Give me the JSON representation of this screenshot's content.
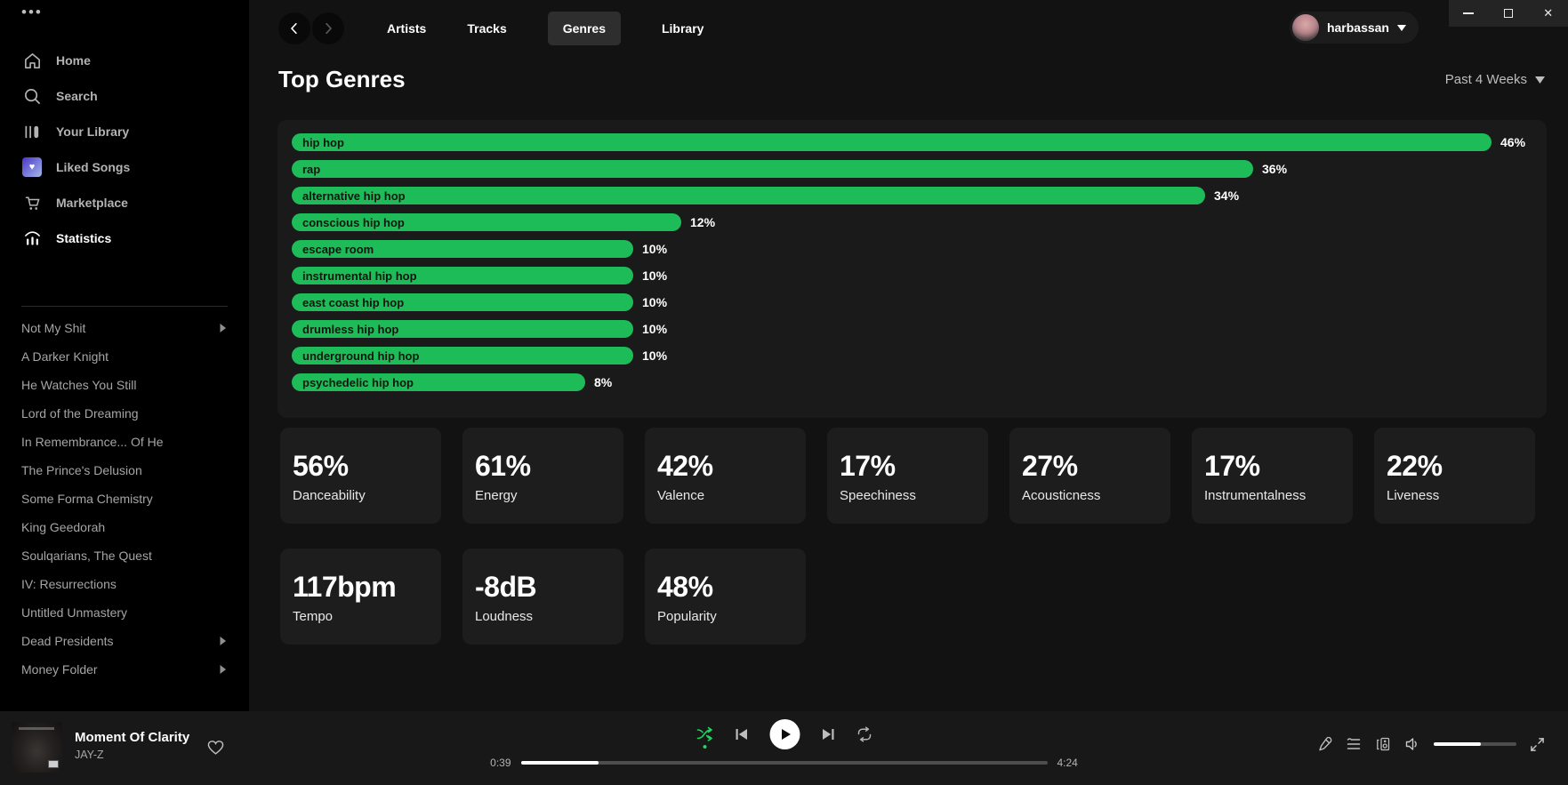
{
  "colors": {
    "accent_green": "#1ebc59",
    "shuffle_green": "#1ed760"
  },
  "sidebar": {
    "menu_dots": "•••",
    "menu": [
      {
        "label": "Home",
        "icon": "home-icon",
        "active": false
      },
      {
        "label": "Search",
        "icon": "search-icon",
        "active": false
      },
      {
        "label": "Your Library",
        "icon": "library-icon",
        "active": false
      },
      {
        "label": "Liked Songs",
        "icon": "liked-songs-icon",
        "active": false
      },
      {
        "label": "Marketplace",
        "icon": "marketplace-cart-icon",
        "active": false
      },
      {
        "label": "Statistics",
        "icon": "statistics-icon",
        "active": true
      }
    ],
    "playlists": [
      {
        "label": "Not My Shit",
        "has_submenu": true
      },
      {
        "label": "A Darker Knight",
        "has_submenu": false
      },
      {
        "label": "He Watches You Still",
        "has_submenu": false
      },
      {
        "label": "Lord of the Dreaming",
        "has_submenu": false
      },
      {
        "label": "In Remembrance... Of He",
        "has_submenu": false
      },
      {
        "label": "The Prince's Delusion",
        "has_submenu": false
      },
      {
        "label": "Some Forma Chemistry",
        "has_submenu": false
      },
      {
        "label": "King Geedorah",
        "has_submenu": false
      },
      {
        "label": "Soulqarians, The Quest",
        "has_submenu": false
      },
      {
        "label": "IV: Resurrections",
        "has_submenu": false
      },
      {
        "label": "Untitled Unmastery",
        "has_submenu": false
      },
      {
        "label": "Dead Presidents",
        "has_submenu": true
      },
      {
        "label": "Money Folder",
        "has_submenu": true
      }
    ]
  },
  "topbar": {
    "tabs": [
      {
        "label": "Artists",
        "active": false
      },
      {
        "label": "Tracks",
        "active": false
      },
      {
        "label": "Genres",
        "active": true
      },
      {
        "label": "Library",
        "active": false
      }
    ],
    "user": {
      "name": "harbassan"
    }
  },
  "window_controls": [
    "minimize",
    "maximize",
    "close"
  ],
  "page": {
    "title": "Top Genres",
    "time_range": "Past 4 Weeks"
  },
  "chart_data": {
    "type": "bar",
    "orientation": "horizontal",
    "title": "Top Genres",
    "time_range": "Past 4 Weeks",
    "categories": [
      "hip hop",
      "rap",
      "alternative hip hop",
      "conscious hip hop",
      "escape room",
      "instrumental hip hop",
      "east coast hip hop",
      "drumless hip hop",
      "underground hip hop",
      "psychedelic hip hop"
    ],
    "values": [
      46,
      36,
      34,
      12,
      10,
      10,
      10,
      10,
      10,
      8
    ],
    "unit": "%",
    "bar_color": "#1ebc59",
    "label_position": "inside-left",
    "value_position": "outside-right"
  },
  "stats_cards": [
    {
      "value": "56%",
      "label": "Danceability"
    },
    {
      "value": "61%",
      "label": "Energy"
    },
    {
      "value": "42%",
      "label": "Valence"
    },
    {
      "value": "17%",
      "label": "Speechiness"
    },
    {
      "value": "27%",
      "label": "Acousticness"
    },
    {
      "value": "17%",
      "label": "Instrumentalness"
    },
    {
      "value": "22%",
      "label": "Liveness"
    },
    {
      "value": "117bpm",
      "label": "Tempo"
    },
    {
      "value": "-8dB",
      "label": "Loudness"
    },
    {
      "value": "48%",
      "label": "Popularity"
    }
  ],
  "player": {
    "track_title": "Moment Of Clarity",
    "artist": "JAY-Z",
    "elapsed": "0:39",
    "duration": "4:24",
    "progress_pct": 14.8,
    "volume_pct": 57,
    "shuffle_active": true,
    "controls": [
      "shuffle-icon",
      "previous-icon",
      "play-icon",
      "next-icon",
      "repeat-icon"
    ],
    "right_controls": [
      "lyrics-mic-icon",
      "queue-icon",
      "connect-device-icon",
      "volume-icon",
      "volume-slider",
      "fullscreen-icon"
    ]
  }
}
